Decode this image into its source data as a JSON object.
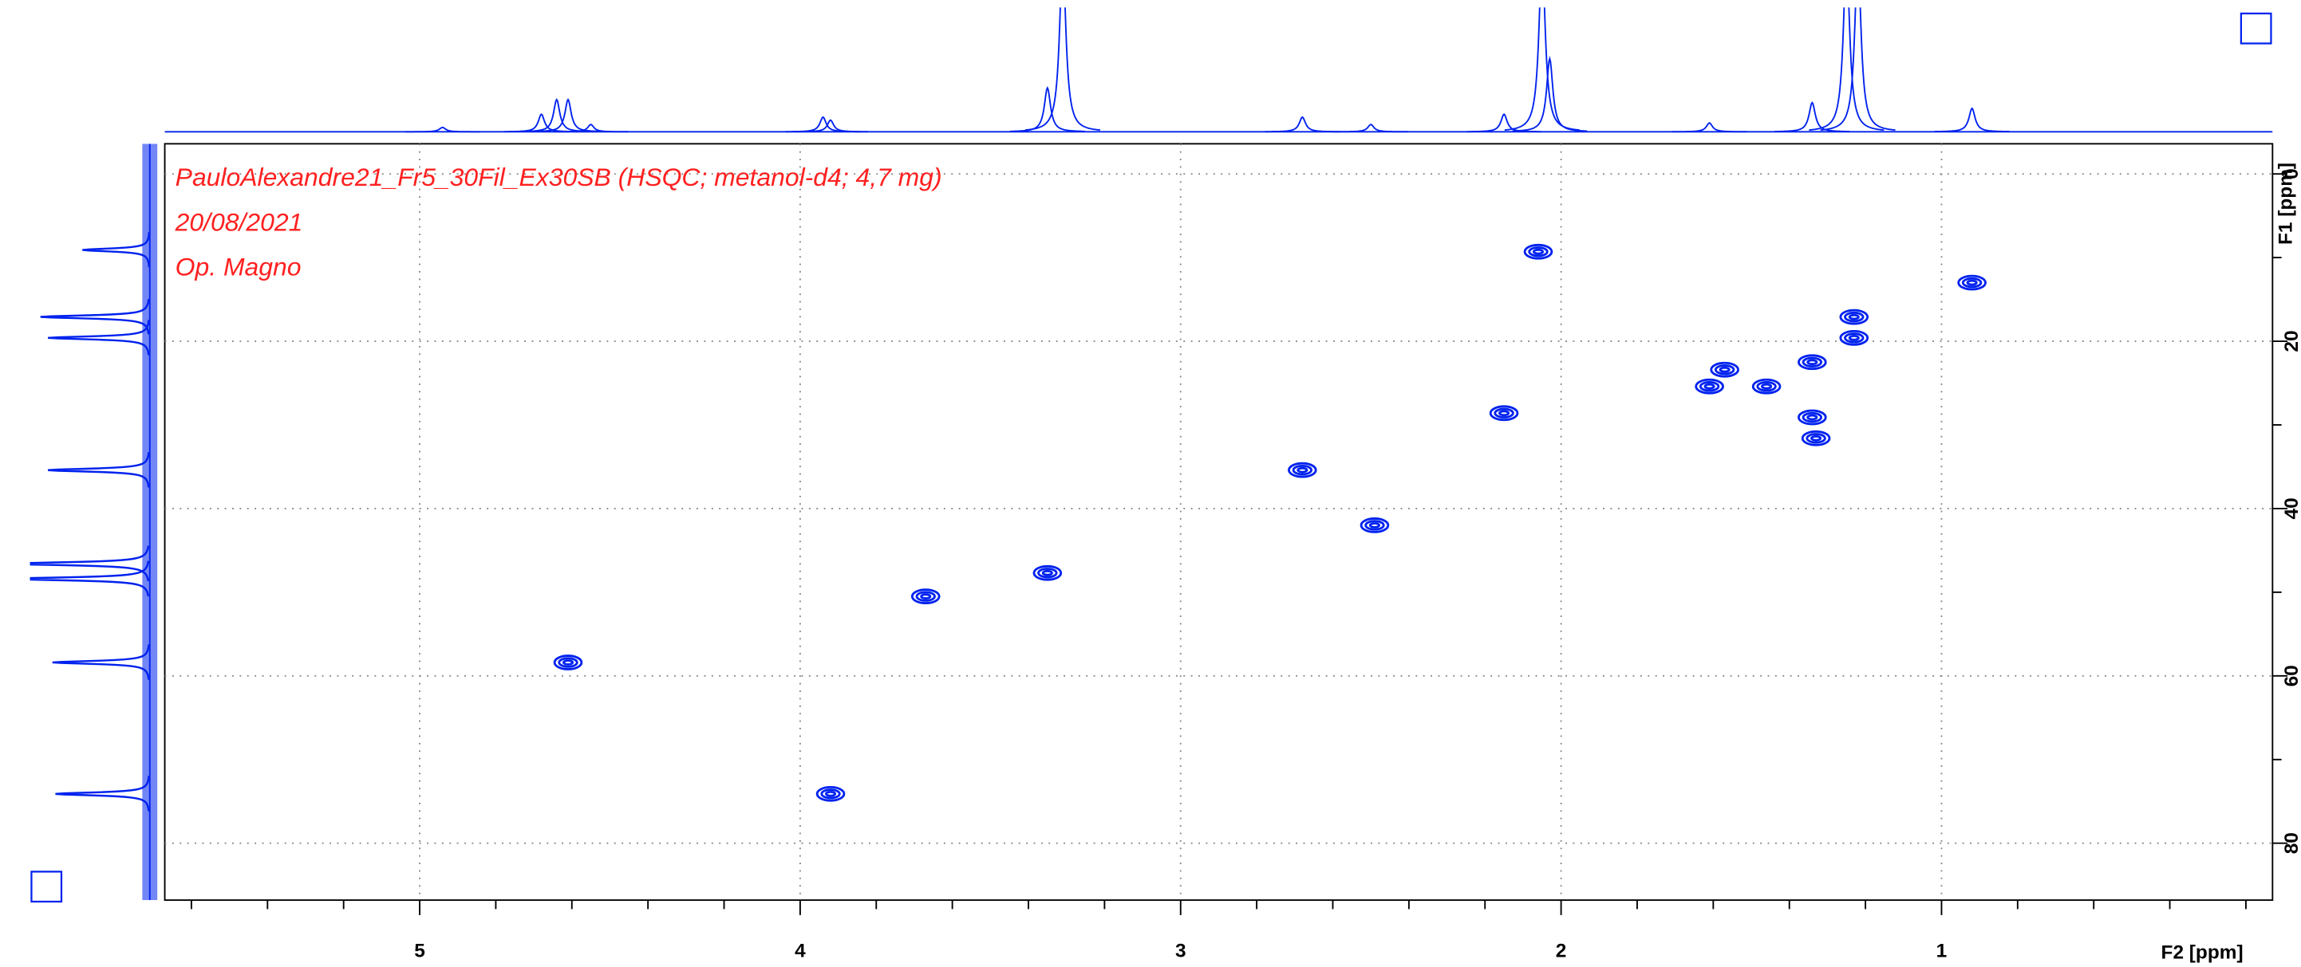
{
  "chart_data": {
    "type": "hsqc",
    "title": "PauloAlexandre21_Fr5_30Fil_Ex30SB (HSQC; metanol-d4; 4,7 mg)",
    "subtitle": "20/08/2021",
    "operator": "Op. Magno",
    "xlabel": "F2 [ppm]",
    "ylabel": "F1 [ppm]",
    "xlim": [
      5.67,
      0.13
    ],
    "ylim": [
      -3.6,
      86.8
    ],
    "xticks": [
      5,
      4,
      3,
      2,
      1
    ],
    "xminorticks": [
      5.6,
      5.4,
      5.2,
      4.8,
      4.6,
      4.4,
      4.2,
      3.8,
      3.6,
      3.4,
      3.2,
      2.8,
      2.6,
      2.4,
      2.2,
      1.8,
      1.6,
      1.4,
      1.2,
      0.8,
      0.6,
      0.4,
      0.2
    ],
    "yticks": [
      0,
      20,
      40,
      60,
      80
    ],
    "yminorticks": [
      10,
      30,
      50,
      70
    ],
    "grid": true,
    "color": "#0022ee",
    "x": [
      2.06,
      0.92,
      1.23,
      1.23,
      1.34,
      1.57,
      1.61,
      1.46,
      2.15,
      1.34,
      1.33,
      2.68,
      2.49,
      3.35,
      3.67,
      4.61,
      3.92
    ],
    "y": [
      9.3,
      13.0,
      17.1,
      19.6,
      22.5,
      23.4,
      25.4,
      25.4,
      28.6,
      29.1,
      31.6,
      35.4,
      42.0,
      47.7,
      50.5,
      58.4,
      74.1
    ],
    "f2_projection": {
      "color": "#0022ee",
      "ylim": [
        0,
        85
      ],
      "x": [
        4.94,
        4.68,
        4.64,
        4.61,
        4.55,
        3.94,
        3.92,
        3.35,
        3.31,
        2.68,
        2.5,
        2.15,
        2.05,
        2.03,
        1.61,
        1.34,
        1.25,
        1.22,
        0.92
      ],
      "values": [
        3,
        12,
        22,
        22,
        5,
        10,
        8,
        30,
        120,
        10,
        5,
        12,
        120,
        50,
        6,
        20,
        120,
        120,
        16
      ]
    },
    "f1_projection": {
      "color": "#0022ee",
      "ylim": [
        0,
        80
      ],
      "x": [
        9.1,
        17.1,
        19.6,
        35.4,
        46.6,
        48.4,
        58.4,
        74.1
      ],
      "values": [
        45,
        73,
        68,
        68,
        95,
        95,
        65,
        63
      ]
    }
  }
}
